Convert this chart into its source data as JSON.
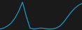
{
  "x": [
    0,
    1,
    2,
    3,
    4,
    5,
    6,
    7,
    8,
    9,
    10,
    11,
    12,
    13,
    14,
    15,
    16,
    17,
    18,
    19,
    20,
    21,
    22
  ],
  "y": [
    1,
    2,
    4,
    7,
    12,
    19,
    28,
    14,
    2,
    1,
    1.5,
    2,
    1.5,
    1,
    1.2,
    2,
    4,
    8,
    13,
    18,
    22,
    25,
    27
  ],
  "line_color": "#2196c8",
  "line_width": 0.9,
  "background_color": "#1a1a1a"
}
